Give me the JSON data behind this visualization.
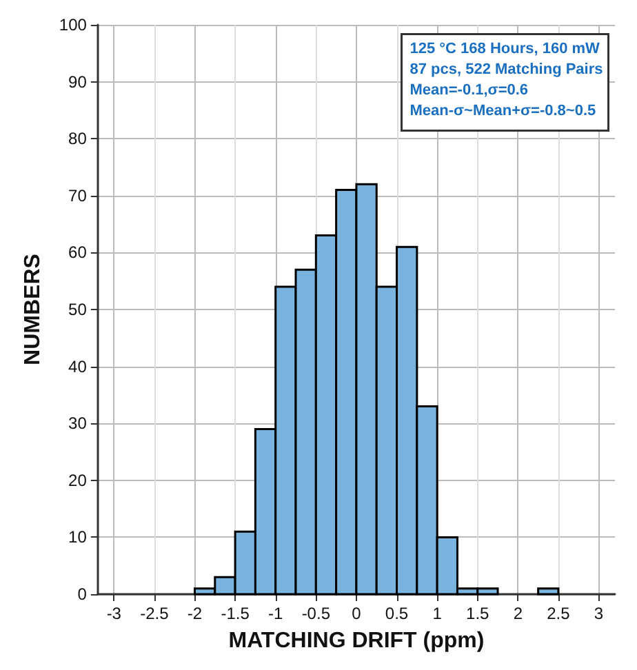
{
  "chart_data": {
    "type": "histogram",
    "xlabel": "MATCHING DRIFT (ppm)",
    "ylabel": "NUMBERS",
    "annotations": [
      "125 °C 168 Hours, 160 mW",
      "87 pcs, 522 Matching Pairs",
      "Mean=-0.1,σ=0.6",
      "Mean-σ~Mean+σ=-0.8~0.5"
    ],
    "bins": [
      -2,
      -1.75,
      -1.5,
      -1.25,
      -1,
      -0.75,
      -0.5,
      -0.25,
      0,
      0.25,
      0.5,
      0.75,
      1,
      1.25,
      1.5,
      1.75,
      2,
      2.25,
      2.5
    ],
    "values": [
      1,
      3,
      11,
      29,
      54,
      57,
      63,
      71,
      72,
      54,
      61,
      33,
      10,
      1,
      1,
      0,
      0,
      1
    ],
    "color": "#7ab4de",
    "xlim": [
      -3.2,
      3.2
    ],
    "xticks": [
      -3,
      -2.5,
      -2,
      -1.5,
      -1,
      -0.5,
      0,
      0.5,
      1,
      1.5,
      2,
      2.5,
      3
    ],
    "ylim": [
      0,
      100
    ],
    "yticks": [
      0,
      10,
      20,
      30,
      40,
      50,
      60,
      70,
      80,
      90,
      100
    ],
    "grid": true
  }
}
